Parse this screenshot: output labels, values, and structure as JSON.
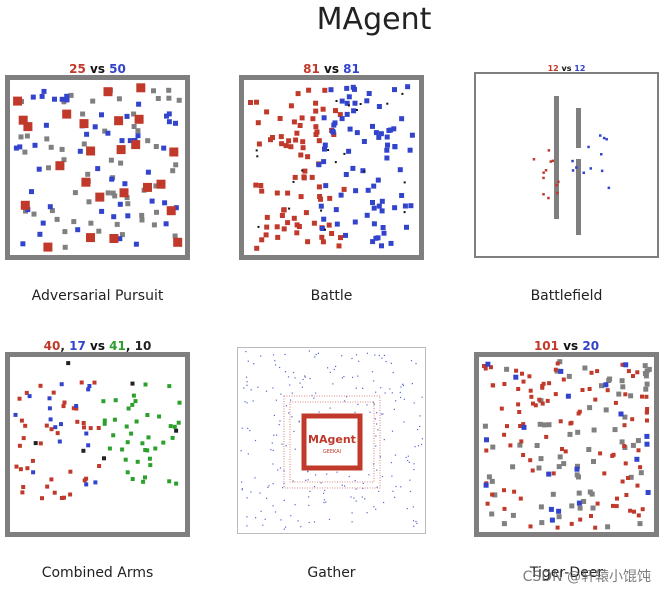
{
  "title": "MAgent",
  "panels": [
    {
      "caption": "Adversarial Pursuit",
      "score": [
        {
          "text": "25",
          "color": "red"
        },
        {
          "text": " vs ",
          "color": "vs"
        },
        {
          "text": "50",
          "color": "blue"
        }
      ]
    },
    {
      "caption": "Battle",
      "score": [
        {
          "text": "81",
          "color": "red"
        },
        {
          "text": " vs ",
          "color": "vs"
        },
        {
          "text": "81",
          "color": "blue"
        }
      ]
    },
    {
      "caption": "Battlefield",
      "score": [
        {
          "text": "12",
          "color": "red"
        },
        {
          "text": " vs ",
          "color": "vs"
        },
        {
          "text": "12",
          "color": "blue"
        }
      ]
    },
    {
      "caption": "Combined Arms",
      "score": [
        {
          "text": "40",
          "color": "red"
        },
        {
          "text": ", ",
          "color": "black"
        },
        {
          "text": "17",
          "color": "blue"
        },
        {
          "text": " vs ",
          "color": "vs"
        },
        {
          "text": "41",
          "color": "green"
        },
        {
          "text": ", ",
          "color": "black"
        },
        {
          "text": "10",
          "color": "black"
        }
      ]
    },
    {
      "caption": "Gather",
      "score": [
        {
          "text": "",
          "color": "red"
        }
      ],
      "logo_text": "MAgent",
      "logo_sub": "GEEKAI"
    },
    {
      "caption": "Tiger-Deer",
      "score": [
        {
          "text": "101",
          "color": "red"
        },
        {
          "text": " vs ",
          "color": "vs"
        },
        {
          "text": "20",
          "color": "blue"
        }
      ]
    }
  ],
  "watermark": "CSDN @轩辕小馄饨",
  "colors": {
    "red": "#c0392b",
    "blue": "#3344cc",
    "green": "#2ca02c",
    "gray": "#808080",
    "wall": "#7f7f7f"
  }
}
